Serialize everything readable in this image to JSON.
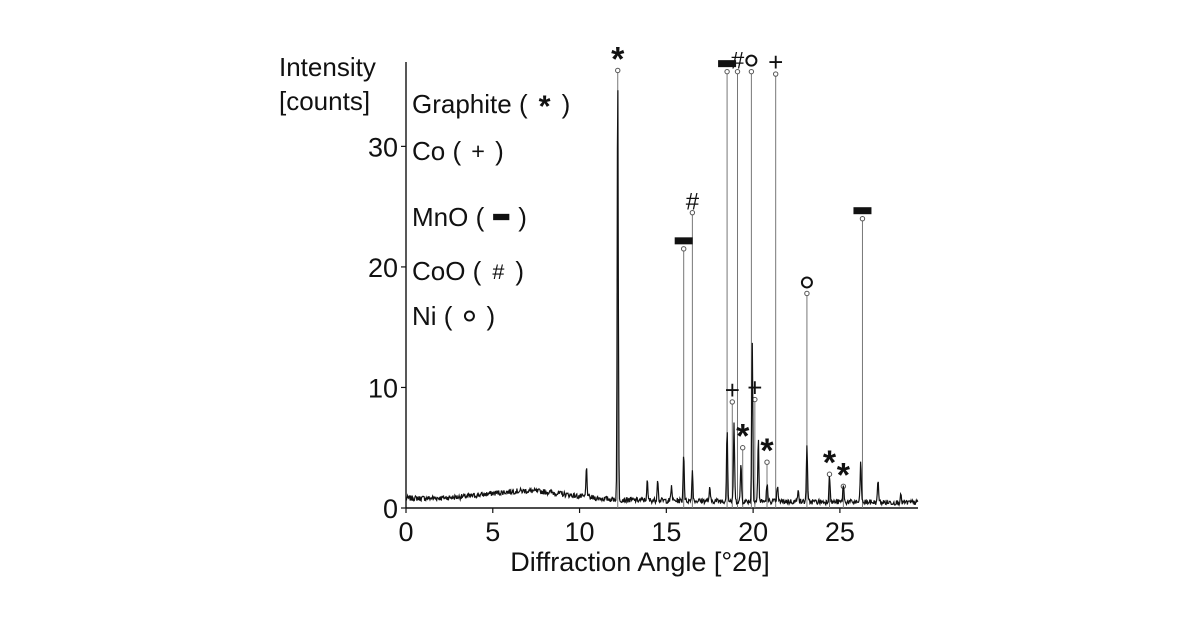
{
  "chart_data": {
    "type": "line",
    "title": "",
    "xlabel": "Diffraction Angle [°2θ]",
    "ylabel_line1": "Intensity",
    "ylabel_line2": "[counts]",
    "xlim": [
      0,
      29.5
    ],
    "ylim": [
      0,
      37
    ],
    "x_ticks": [
      0,
      5,
      10,
      15,
      20,
      25
    ],
    "y_ticks": [
      0,
      10,
      20,
      30
    ],
    "legend": [
      {
        "text": "Graphite (",
        "symbol": "*",
        "close": ")",
        "symbol_type": "asterisk"
      },
      {
        "text": "Co (",
        "symbol": "+",
        "close": ")",
        "symbol_type": "plus"
      },
      {
        "text": "MnO (",
        "symbol": "−",
        "close": ")",
        "symbol_type": "bar"
      },
      {
        "text": "CoO (",
        "symbol": "#",
        "close": ")",
        "symbol_type": "hash"
      },
      {
        "text": "Ni (",
        "symbol": "O",
        "close": ")",
        "symbol_type": "circle"
      }
    ],
    "reference_peaks": [
      {
        "x": 12.2,
        "y": 36.3,
        "phase": "Graphite",
        "symbol": "*"
      },
      {
        "x": 16.0,
        "y": 21.5,
        "phase": "MnO",
        "symbol": "−"
      },
      {
        "x": 16.5,
        "y": 24.5,
        "phase": "CoO",
        "symbol": "#"
      },
      {
        "x": 18.5,
        "y": 36.2,
        "phase": "MnO",
        "symbol": "−"
      },
      {
        "x": 18.8,
        "y": 8.8,
        "phase": "Co",
        "symbol": "+"
      },
      {
        "x": 19.1,
        "y": 36.2,
        "phase": "CoO",
        "symbol": "#"
      },
      {
        "x": 19.4,
        "y": 5.0,
        "phase": "Graphite",
        "symbol": "*"
      },
      {
        "x": 19.9,
        "y": 36.2,
        "phase": "Ni",
        "symbol": "O"
      },
      {
        "x": 20.1,
        "y": 9.0,
        "phase": "Co",
        "symbol": "+"
      },
      {
        "x": 20.8,
        "y": 3.8,
        "phase": "Graphite",
        "symbol": "*"
      },
      {
        "x": 21.3,
        "y": 36.0,
        "phase": "Co",
        "symbol": "+"
      },
      {
        "x": 23.1,
        "y": 17.8,
        "phase": "Ni",
        "symbol": "O"
      },
      {
        "x": 24.4,
        "y": 2.8,
        "phase": "Graphite",
        "symbol": "*"
      },
      {
        "x": 25.2,
        "y": 1.8,
        "phase": "Graphite",
        "symbol": "*"
      },
      {
        "x": 26.3,
        "y": 24.0,
        "phase": "MnO",
        "symbol": "−"
      }
    ],
    "measured_peaks": [
      {
        "x": 10.4,
        "y": 2.5
      },
      {
        "x": 12.2,
        "y": 35.5
      },
      {
        "x": 13.9,
        "y": 1.6
      },
      {
        "x": 14.5,
        "y": 1.9
      },
      {
        "x": 15.3,
        "y": 1.2
      },
      {
        "x": 16.0,
        "y": 4.0
      },
      {
        "x": 16.5,
        "y": 2.5
      },
      {
        "x": 17.5,
        "y": 1.0
      },
      {
        "x": 18.5,
        "y": 6.0
      },
      {
        "x": 18.9,
        "y": 6.5
      },
      {
        "x": 19.3,
        "y": 3.2
      },
      {
        "x": 19.95,
        "y": 13.2
      },
      {
        "x": 20.3,
        "y": 5.2
      },
      {
        "x": 20.8,
        "y": 1.5
      },
      {
        "x": 21.4,
        "y": 1.3
      },
      {
        "x": 22.6,
        "y": 1.2
      },
      {
        "x": 23.1,
        "y": 4.8
      },
      {
        "x": 24.4,
        "y": 2.4
      },
      {
        "x": 25.2,
        "y": 1.5
      },
      {
        "x": 26.2,
        "y": 3.4
      },
      {
        "x": 27.2,
        "y": 1.8
      },
      {
        "x": 28.5,
        "y": 0.6
      }
    ],
    "grid": false
  }
}
